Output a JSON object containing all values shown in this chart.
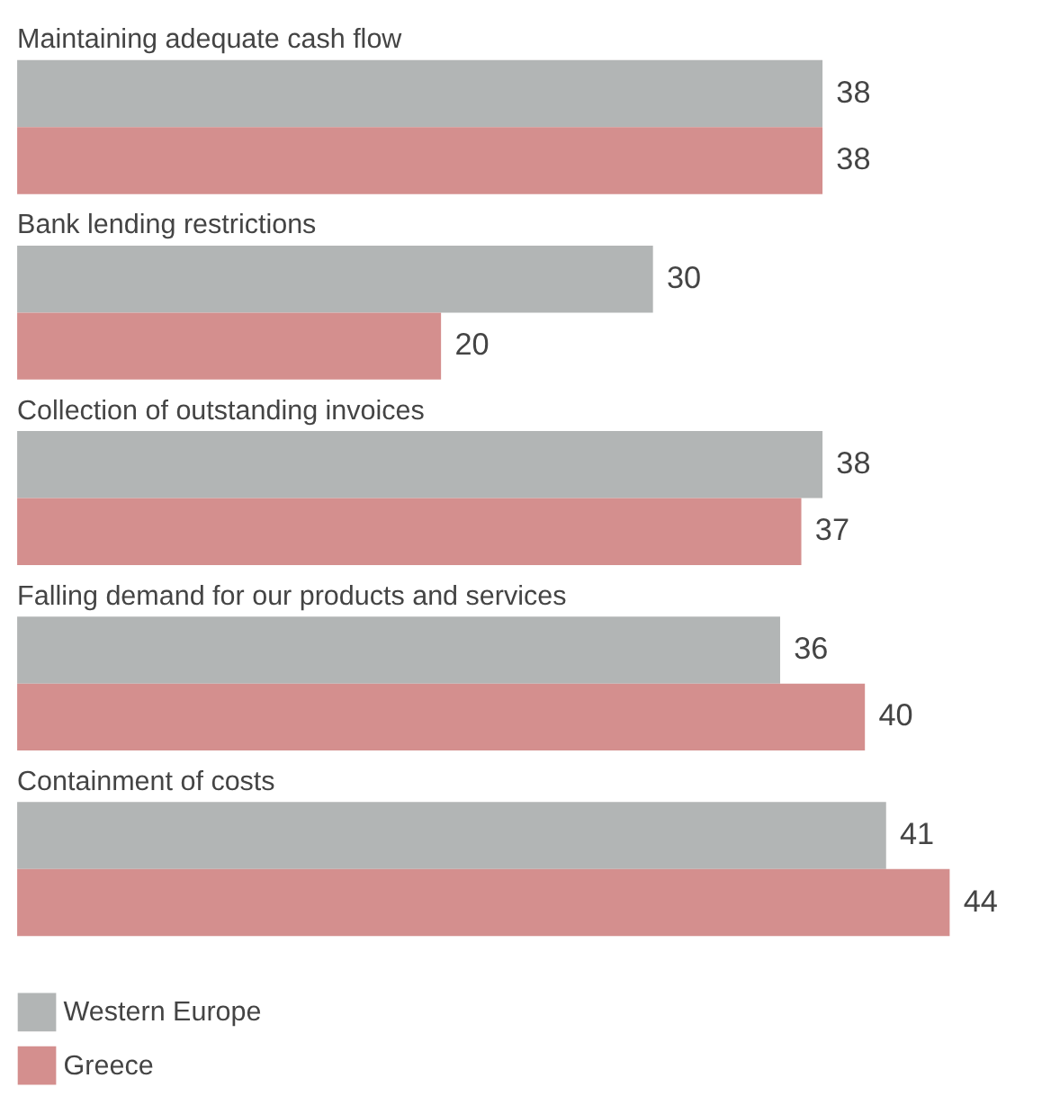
{
  "chart_data": {
    "type": "bar",
    "orientation": "horizontal",
    "data_labels": true,
    "legend": "bottom",
    "categories": [
      "Maintaining adequate cash flow",
      "Bank lending restrictions",
      "Collection of outstanding invoices",
      "Falling demand for our products and services",
      "Containment of costs"
    ],
    "series": [
      {
        "name": "Western Europe",
        "color": "#b2b5b5",
        "values": [
          38,
          30,
          38,
          36,
          41
        ]
      },
      {
        "name": "Greece",
        "color": "#d48f8e",
        "values": [
          38,
          20,
          37,
          40,
          44
        ]
      }
    ]
  }
}
